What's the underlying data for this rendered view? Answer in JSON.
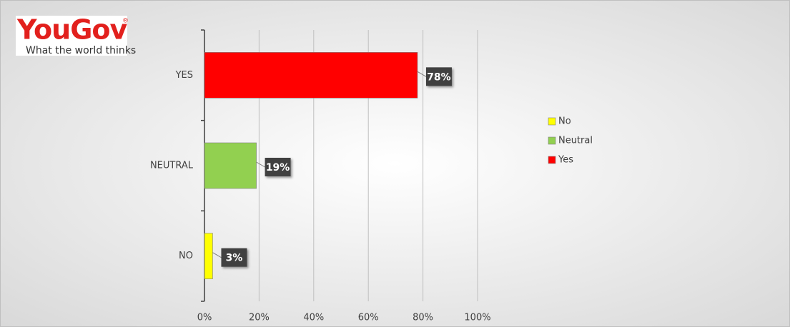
{
  "logo": {
    "brand": "YouGov",
    "mark": "®",
    "tagline": "What the world thinks"
  },
  "chart_data": {
    "type": "bar",
    "orientation": "horizontal",
    "categories": [
      "NO",
      "NEUTRAL",
      "YES"
    ],
    "series": [
      {
        "name": "No",
        "color": "#ffff00",
        "values": [
          3,
          null,
          null
        ],
        "value_labels": [
          "3%",
          null,
          null
        ]
      },
      {
        "name": "Neutral",
        "color": "#92d050",
        "values": [
          null,
          19,
          null
        ],
        "value_labels": [
          null,
          "19%",
          null
        ]
      },
      {
        "name": "Yes",
        "color": "#ff0000",
        "values": [
          null,
          null,
          78
        ],
        "value_labels": [
          null,
          null,
          "78%"
        ]
      }
    ],
    "xlim": [
      0,
      100
    ],
    "xticks": [
      {
        "value": 0,
        "label": "0%"
      },
      {
        "value": 20,
        "label": "20%"
      },
      {
        "value": 40,
        "label": "40%"
      },
      {
        "value": 60,
        "label": "60%"
      },
      {
        "value": 80,
        "label": "80%"
      },
      {
        "value": 100,
        "label": "100%"
      }
    ],
    "grid": true,
    "legend": "right"
  }
}
